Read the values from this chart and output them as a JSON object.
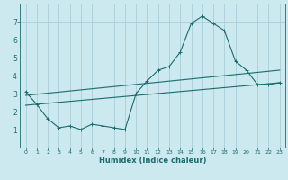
{
  "title": "",
  "xlabel": "Humidex (Indice chaleur)",
  "background_color": "#cce9f0",
  "grid_color": "#aacdd8",
  "line_color": "#1a6b6b",
  "xlim": [
    -0.5,
    23.5
  ],
  "ylim": [
    0,
    8
  ],
  "xticks": [
    0,
    1,
    2,
    3,
    4,
    5,
    6,
    7,
    8,
    9,
    10,
    11,
    12,
    13,
    14,
    15,
    16,
    17,
    18,
    19,
    20,
    21,
    22,
    23
  ],
  "yticks": [
    1,
    2,
    3,
    4,
    5,
    6,
    7
  ],
  "line1_x": [
    0,
    1,
    2,
    3,
    4,
    5,
    6,
    7,
    8,
    9,
    10,
    11,
    12,
    13,
    14,
    15,
    16,
    17,
    18,
    19,
    20,
    21,
    22,
    23
  ],
  "line1_y": [
    3.1,
    2.4,
    1.6,
    1.1,
    1.2,
    1.0,
    1.3,
    1.2,
    1.1,
    1.0,
    3.0,
    3.7,
    4.3,
    4.5,
    5.3,
    6.9,
    7.3,
    6.9,
    6.5,
    4.8,
    4.3,
    3.5,
    3.5,
    3.6
  ],
  "line2_x": [
    0,
    23
  ],
  "line2_y": [
    2.35,
    3.6
  ],
  "line3_x": [
    0,
    23
  ],
  "line3_y": [
    2.9,
    4.3
  ],
  "marker_size": 2.5,
  "line_width": 0.8
}
